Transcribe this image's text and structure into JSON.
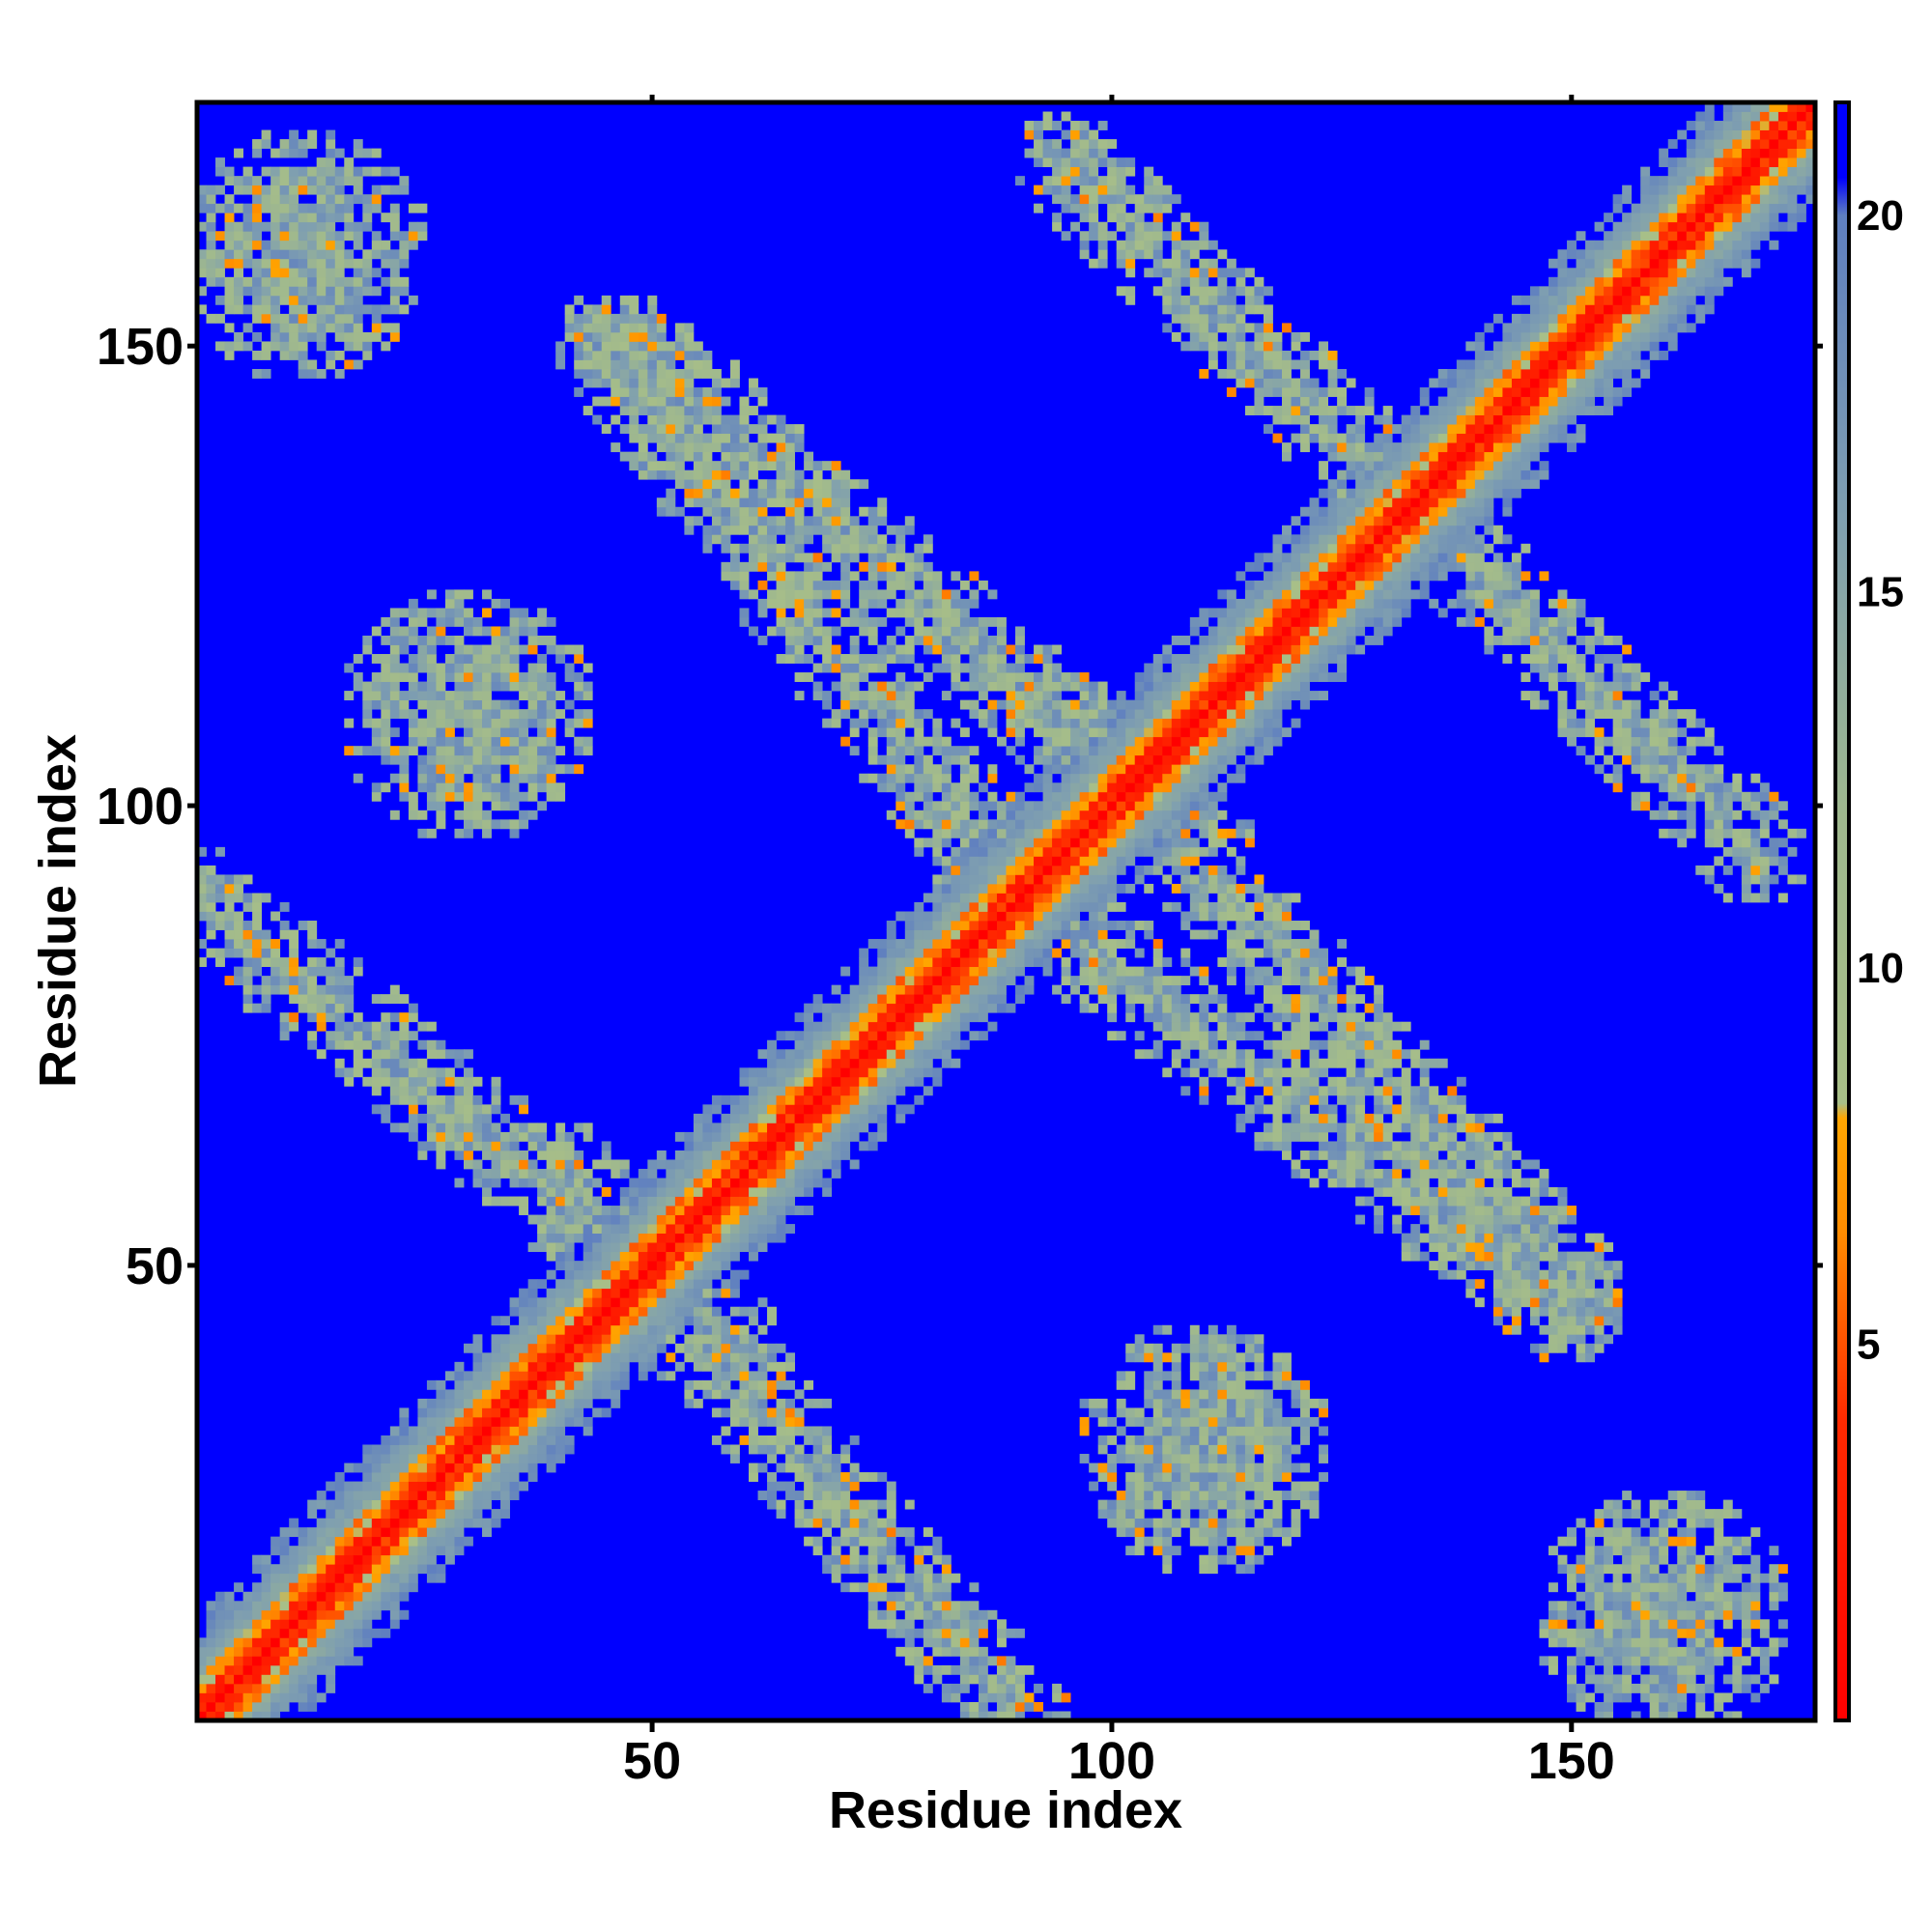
{
  "chart_data": {
    "type": "heatmap",
    "title": "",
    "xlabel": "Residue index",
    "ylabel": "Residue index",
    "n_residues": 176,
    "xlim": [
      1,
      176
    ],
    "ylim": [
      1,
      176
    ],
    "x_ticks": [
      50,
      100,
      150
    ],
    "y_ticks": [
      50,
      100,
      150
    ],
    "colorbar": {
      "range": [
        0,
        21.5
      ],
      "ticks": [
        5,
        10,
        15,
        20
      ],
      "stops": [
        {
          "value": 0,
          "color": "#ff0000"
        },
        {
          "value": 4,
          "color": "#ff2a00"
        },
        {
          "value": 6.5,
          "color": "#ff8c00"
        },
        {
          "value": 8,
          "color": "#ffa500"
        },
        {
          "value": 8.2,
          "color": "#a8bf88"
        },
        {
          "value": 12,
          "color": "#9fb88e"
        },
        {
          "value": 16,
          "color": "#7f9fb0"
        },
        {
          "value": 20,
          "color": "#5f7fc0"
        },
        {
          "value": 20.5,
          "color": "#0000ff"
        }
      ]
    },
    "background_value": 21,
    "features": [
      {
        "kind": "diagonal",
        "description": "main diagonal contact band i=j",
        "core": 0,
        "width": 8
      },
      {
        "kind": "antidiagonal_band",
        "i": [
          1,
          60
        ],
        "j": [
          90,
          40
        ],
        "value": 11
      },
      {
        "kind": "antidiagonal_band",
        "i": [
          48,
          110
        ],
        "j": [
          150,
          95
        ],
        "value": 11
      },
      {
        "kind": "antidiagonal_band",
        "i": [
          90,
          150
        ],
        "j": [
          90,
          45
        ],
        "value": 11
      },
      {
        "kind": "antidiagonal_band",
        "i": [
          95,
          170
        ],
        "j": [
          170,
          95
        ],
        "value": 11
      },
      {
        "kind": "patch",
        "i_center": 12,
        "j_center": 160,
        "value": 12
      },
      {
        "kind": "patch",
        "i_center": 160,
        "j_center": 12,
        "value": 12
      },
      {
        "kind": "patch",
        "i_center": 30,
        "j_center": 110,
        "value": 13
      },
      {
        "kind": "patch",
        "i_center": 110,
        "j_center": 30,
        "value": 13
      }
    ]
  }
}
